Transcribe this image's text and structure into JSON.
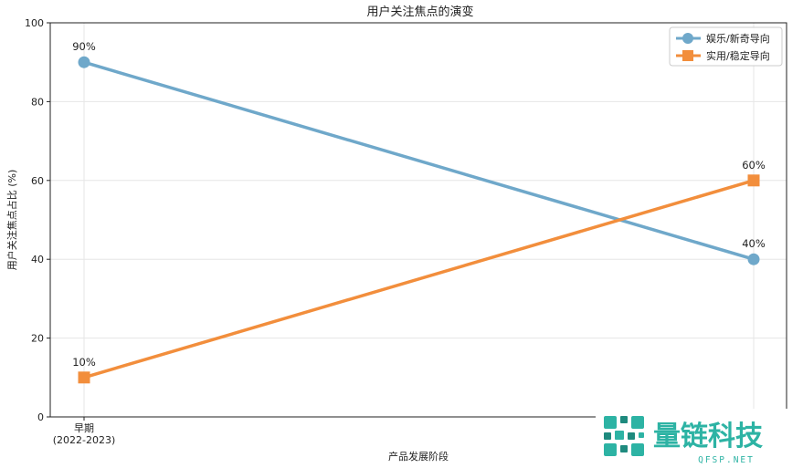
{
  "chart_data": {
    "type": "line",
    "title": "用户关注焦点的演变",
    "xlabel": "产品发展阶段",
    "ylabel": "用户关注焦点占比 (%)",
    "categories": [
      "早期\n(2022-2023)",
      ""
    ],
    "ylim": [
      0,
      100
    ],
    "yticks": [
      0,
      20,
      40,
      60,
      80,
      100
    ],
    "grid": true,
    "legend_position": "top-right",
    "series": [
      {
        "name": "娱乐/新奇导向",
        "values": [
          90,
          40
        ],
        "labels": [
          "90%",
          "40%"
        ],
        "color": "#6FA8CA",
        "marker": "circle"
      },
      {
        "name": "实用/稳定导向",
        "values": [
          10,
          60
        ],
        "labels": [
          "10%",
          "60%"
        ],
        "color": "#F28E3C",
        "marker": "square"
      }
    ]
  },
  "watermark": {
    "text": "量链科技",
    "subtext": "QFSP.NET",
    "colors": {
      "primary": "#2DB3A4",
      "secondary": "#1E8A7E"
    }
  }
}
